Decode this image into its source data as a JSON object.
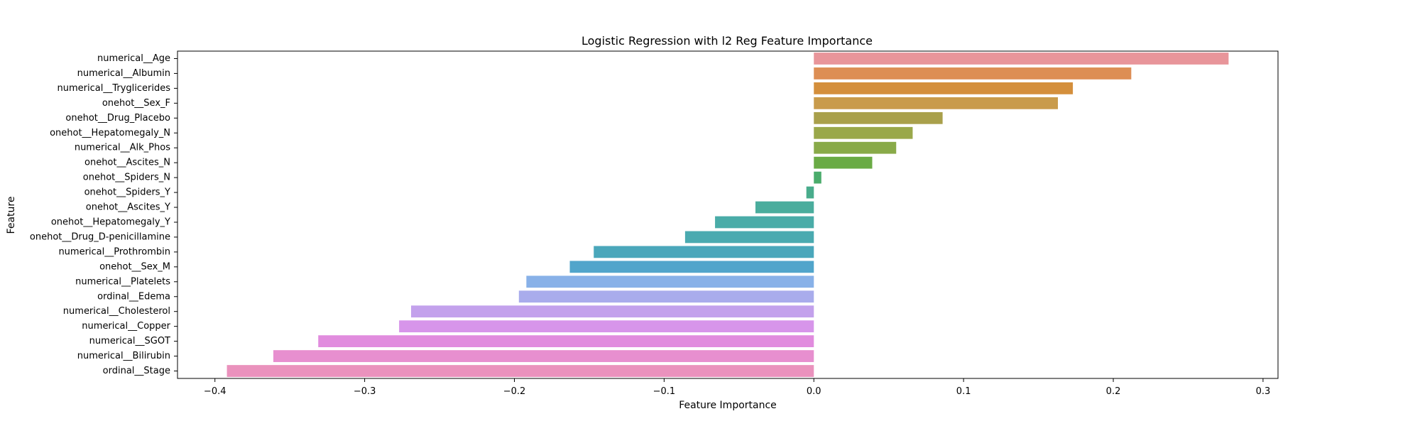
{
  "chart_data": {
    "type": "bar",
    "orientation": "horizontal",
    "title": "Logistic Regression with l2 Reg Feature Importance",
    "xlabel": "Feature Importance",
    "ylabel": "Feature",
    "xlim": [
      -0.425,
      0.31
    ],
    "xticks": [
      -0.4,
      -0.3,
      -0.2,
      -0.1,
      0.0,
      0.1,
      0.2,
      0.3
    ],
    "xtick_labels": [
      "−0.4",
      "−0.3",
      "−0.2",
      "−0.1",
      "0.0",
      "0.1",
      "0.2",
      "0.3"
    ],
    "grid": false,
    "categories": [
      "numerical__Age",
      "numerical__Albumin",
      "numerical__Tryglicerides",
      "onehot__Sex_F",
      "onehot__Drug_Placebo",
      "onehot__Hepatomegaly_N",
      "numerical__Alk_Phos",
      "onehot__Ascites_N",
      "onehot__Spiders_N",
      "onehot__Spiders_Y",
      "onehot__Ascites_Y",
      "onehot__Hepatomegaly_Y",
      "onehot__Drug_D-penicillamine",
      "numerical__Prothrombin",
      "onehot__Sex_M",
      "numerical__Platelets",
      "ordinal__Edema",
      "numerical__Cholesterol",
      "numerical__Copper",
      "numerical__SGOT",
      "numerical__Bilirubin",
      "ordinal__Stage"
    ],
    "values": [
      0.277,
      0.212,
      0.173,
      0.163,
      0.086,
      0.066,
      0.055,
      0.039,
      0.005,
      -0.005,
      -0.039,
      -0.066,
      -0.086,
      -0.147,
      -0.163,
      -0.192,
      -0.197,
      -0.269,
      -0.277,
      -0.331,
      -0.361,
      -0.392
    ],
    "colors": [
      "#e8959a",
      "#dd8e54",
      "#d48f3c",
      "#c99b4b",
      "#a9a04b",
      "#9aa84a",
      "#89aa49",
      "#6aab45",
      "#4aac6b",
      "#49ac8c",
      "#4aad9d",
      "#4aaca8",
      "#4aaab0",
      "#4aa7bb",
      "#51a5cb",
      "#88b1e8",
      "#a9acec",
      "#c3a1ec",
      "#d795ea",
      "#e18cde",
      "#e78fcf",
      "#ea92bd"
    ]
  }
}
